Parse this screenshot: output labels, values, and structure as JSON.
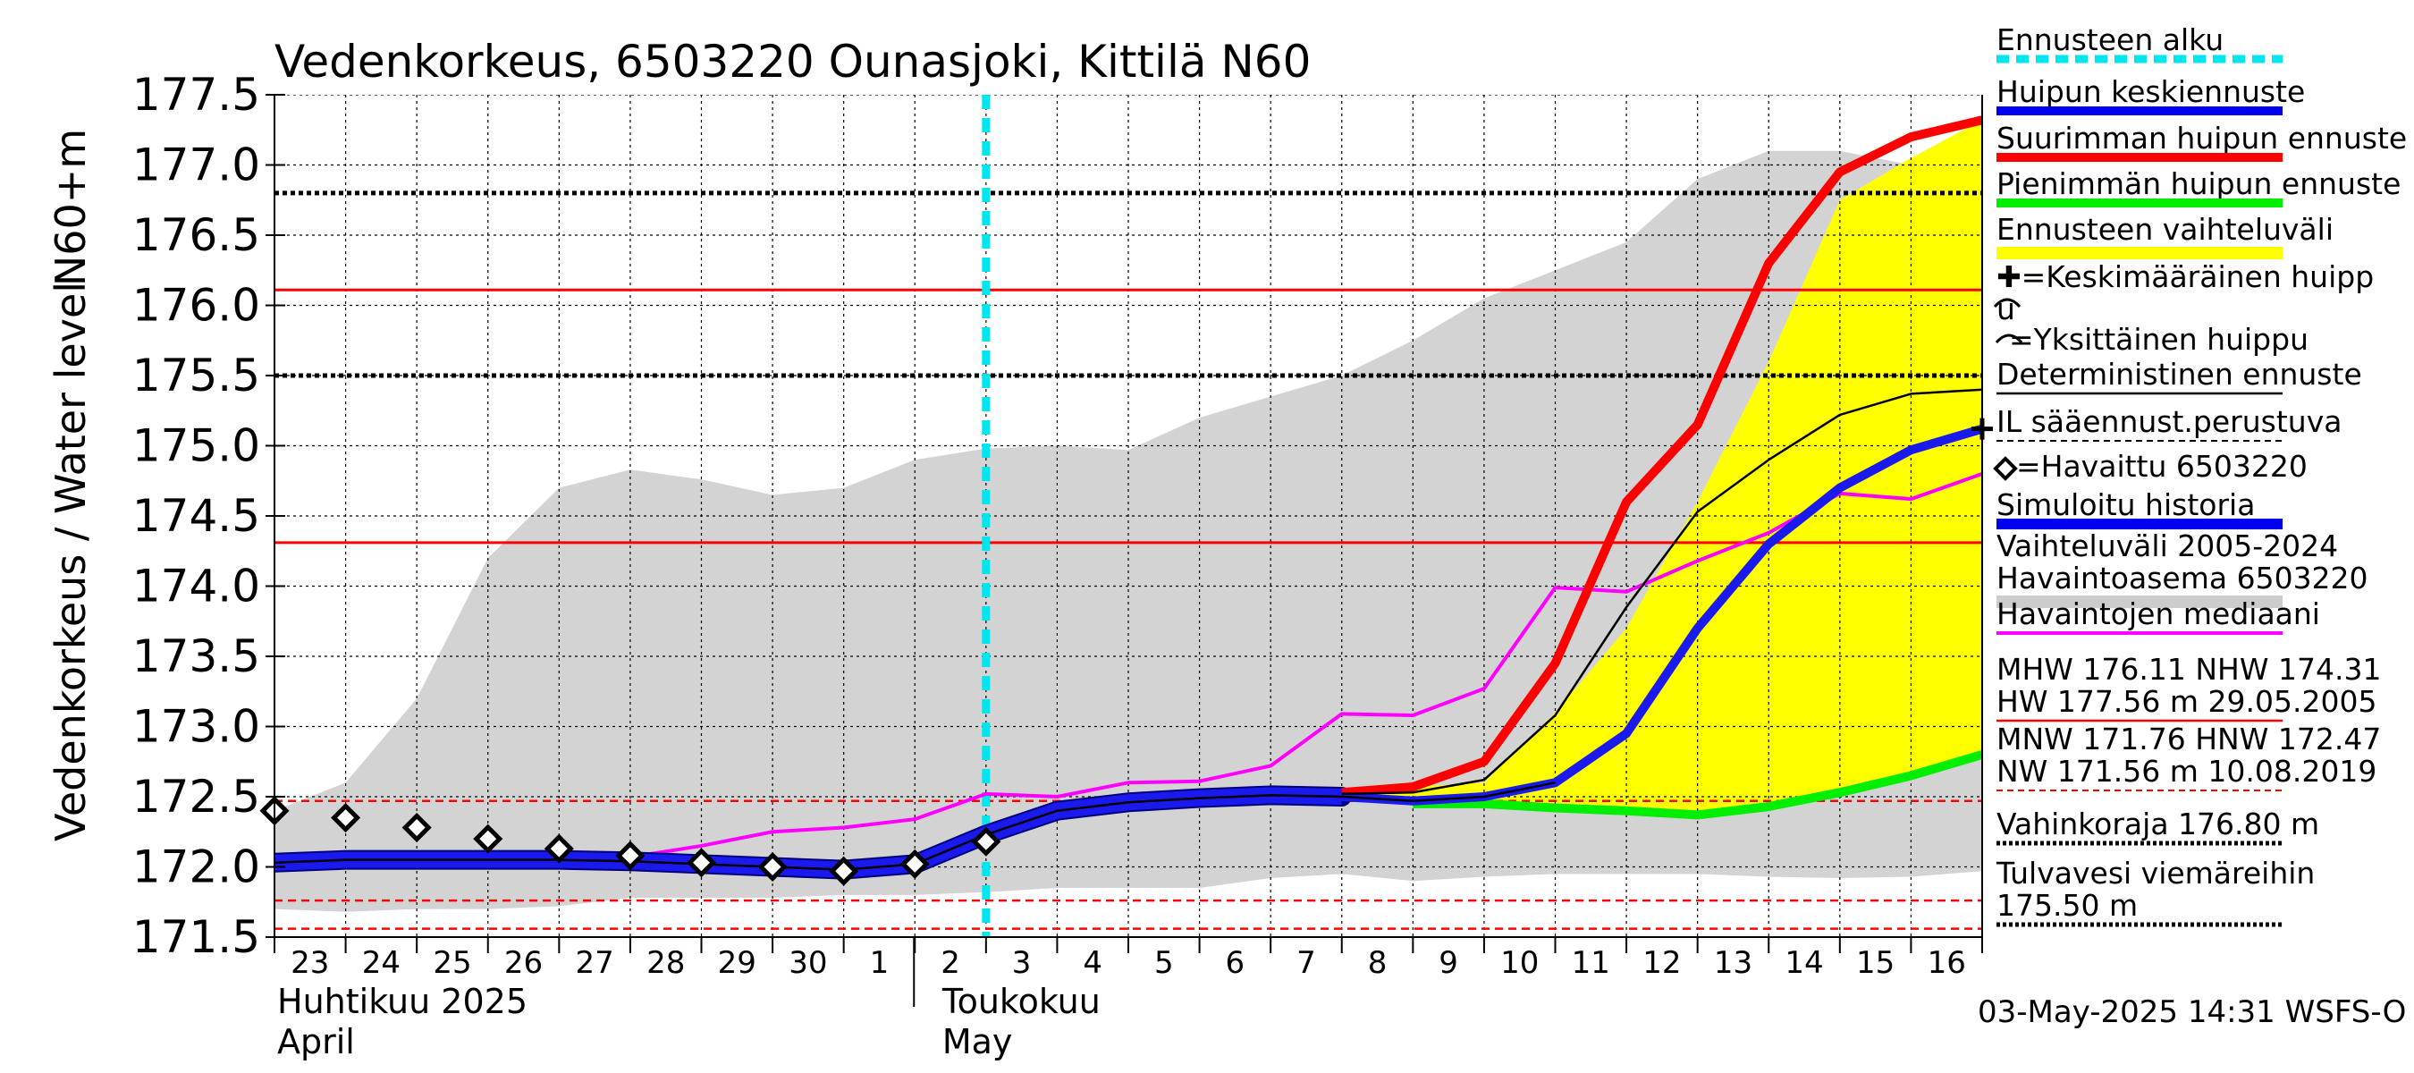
{
  "chart_data": {
    "type": "line",
    "title": "Vedenkorkeus, 6503220 Ounasjoki, Kittilä N60",
    "ylabel_left": "Vedenkorkeus / Water level",
    "ylabel_right": "N60+m",
    "ylim": [
      171.5,
      177.5
    ],
    "yticks": [
      "171.5",
      "172.0",
      "172.5",
      "173.0",
      "173.5",
      "174.0",
      "174.5",
      "175.0",
      "175.5",
      "176.0",
      "176.5",
      "177.0",
      "177.5"
    ],
    "xlim": [
      0,
      24
    ],
    "day_labels": [
      "23",
      "24",
      "25",
      "26",
      "27",
      "28",
      "29",
      "30",
      "1",
      "2",
      "3",
      "4",
      "5",
      "6",
      "7",
      "8",
      "9",
      "10",
      "11",
      "12",
      "13",
      "14",
      "15",
      "16"
    ],
    "month_labels": [
      {
        "fi": "Huhtikuu  2025",
        "en": "April",
        "x": 0
      },
      {
        "fi": "Toukokuu",
        "en": "May",
        "x": 9
      }
    ],
    "forecast_start_x": 10,
    "grid": true,
    "legend_position": "right",
    "legend": [
      {
        "label": "Ennusteen alku",
        "color": "#00e5ee",
        "style": "dotted-thick"
      },
      {
        "label": "Huipun keskiennuste",
        "color": "#0000ee",
        "style": "thick"
      },
      {
        "label": "Suurimman huipun ennuste",
        "color": "#ff0000",
        "style": "thick"
      },
      {
        "label": "Pienimmän huipun ennuste",
        "color": "#00ee00",
        "style": "thick"
      },
      {
        "label": "Ennusteen vaihteluväli",
        "color": "#ffff00",
        "style": "band"
      },
      {
        "label": "✚=Keskimääräinen huipp",
        "label2": "u",
        "color": "#000000",
        "style": "none"
      },
      {
        "label": "=Yksittäinen huippu",
        "color": "#000000",
        "style": "none"
      },
      {
        "label": "Deterministinen ennuste",
        "color": "#000000",
        "style": "thin"
      },
      {
        "label": "IL sääennust.perustuva",
        "color": "#000000",
        "style": "dashed-thin"
      },
      {
        "label": "=Havaittu 6503220",
        "color": "#000000",
        "style": "none"
      },
      {
        "label": "Simuloitu historia",
        "color": "#0000ee",
        "style": "thick-dark"
      },
      {
        "label": "Vaihteluväli 2005-2024",
        "label2": " Havaintoasema 6503220",
        "color": "#cccccc",
        "style": "band"
      },
      {
        "label": "Havaintojen mediaani",
        "color": "#ff00ff",
        "style": "thin-med"
      },
      {
        "label": "MHW 176.11 NHW 174.31",
        "label2": "HW 177.56 m 29.05.2005",
        "color": "#ff0000",
        "style": "thin"
      },
      {
        "label": "MNW 171.76 HNW 172.47",
        "label2": "NW 171.56 m 10.08.2019",
        "color": "#ff0000",
        "style": "dashed-thin"
      },
      {
        "label": "Vahinkoraja 176.80 m",
        "color": "#000000",
        "style": "dotted-med"
      },
      {
        "label": "Tulvavesi viemäreihin",
        "label2": " 175.50 m",
        "color": "#000000",
        "style": "dotted-med"
      }
    ],
    "hlines": [
      {
        "name": "Vahinkoraja",
        "y": 176.8,
        "color": "#000000",
        "style": "dotted"
      },
      {
        "name": "Tulvavesi viemäreihin",
        "y": 175.5,
        "color": "#000000",
        "style": "dotted"
      },
      {
        "name": "MHW",
        "y": 176.11,
        "color": "#ff0000",
        "style": "solid"
      },
      {
        "name": "NHW",
        "y": 174.31,
        "color": "#ff0000",
        "style": "solid"
      },
      {
        "name": "HNW",
        "y": 172.47,
        "color": "#ff0000",
        "style": "dashed"
      },
      {
        "name": "MNW",
        "y": 171.76,
        "color": "#ff0000",
        "style": "dashed"
      },
      {
        "name": "NW",
        "y": 171.56,
        "color": "#ff0000",
        "style": "dashed"
      }
    ],
    "variation_band": {
      "color": "#d3d3d3",
      "x": [
        0,
        1,
        2,
        3,
        4,
        5,
        6,
        7,
        8,
        9,
        10,
        11,
        12,
        13,
        14,
        15,
        16,
        17,
        18,
        19,
        20,
        21,
        22,
        23,
        24
      ],
      "upper": [
        172.4,
        172.6,
        173.2,
        174.2,
        174.7,
        174.83,
        174.76,
        174.65,
        174.7,
        174.9,
        174.98,
        175.0,
        174.97,
        175.2,
        175.35,
        175.5,
        175.75,
        176.05,
        176.25,
        176.45,
        176.9,
        177.1,
        177.1,
        177.0,
        176.8
      ],
      "lower": [
        171.7,
        171.68,
        171.7,
        171.7,
        171.72,
        171.78,
        171.78,
        171.78,
        171.8,
        171.8,
        171.82,
        171.85,
        171.85,
        171.85,
        171.92,
        171.95,
        171.9,
        171.93,
        171.95,
        171.95,
        171.95,
        171.93,
        171.92,
        171.93,
        171.97
      ]
    },
    "forecast_band": {
      "color": "#ffff00",
      "x": [
        15,
        16,
        17,
        18,
        19,
        20,
        21,
        22,
        23,
        24
      ],
      "upper": [
        172.55,
        172.57,
        172.6,
        173.1,
        173.7,
        174.6,
        175.6,
        176.75,
        177.05,
        177.32
      ],
      "lower": [
        172.5,
        172.5,
        172.47,
        172.44,
        172.4,
        172.38,
        172.44,
        172.53,
        172.65,
        172.8
      ]
    },
    "series": [
      {
        "name": "Havaintojen mediaani",
        "color": "#ff00ff",
        "width": 4,
        "x": [
          0,
          1,
          2,
          3,
          4,
          5,
          6,
          7,
          8,
          9,
          10,
          11,
          12,
          13,
          14,
          15,
          16,
          17,
          18,
          19,
          20,
          21,
          22,
          23,
          24
        ],
        "y": [
          172.05,
          172.1,
          172.08,
          172.08,
          172.1,
          172.07,
          172.15,
          172.25,
          172.28,
          172.34,
          172.52,
          172.5,
          172.6,
          172.61,
          172.72,
          173.09,
          173.08,
          173.27,
          173.99,
          173.96,
          174.18,
          174.38,
          174.66,
          174.62,
          174.8
        ]
      },
      {
        "name": "Simuloitu historia",
        "color": "#1a1aee",
        "width": 18,
        "x": [
          0,
          1,
          2,
          3,
          4,
          5,
          6,
          7,
          8,
          9,
          10,
          11,
          12,
          13,
          14,
          15
        ],
        "y": [
          172.03,
          172.05,
          172.05,
          172.05,
          172.05,
          172.04,
          172.02,
          172.0,
          171.98,
          172.02,
          172.23,
          172.4,
          172.46,
          172.49,
          172.51,
          172.5
        ]
      },
      {
        "name": "Pienimmän huipun ennuste",
        "color": "#00ee00",
        "width": 10,
        "x": [
          16,
          17,
          18,
          19,
          20,
          21,
          22,
          23,
          24
        ],
        "y": [
          172.45,
          172.45,
          172.42,
          172.4,
          172.37,
          172.43,
          172.53,
          172.65,
          172.8
        ]
      },
      {
        "name": "Suurimman huipun ennuste",
        "color": "#ff0000",
        "width": 10,
        "x": [
          15,
          16,
          17,
          18,
          19,
          20,
          21,
          22,
          23,
          24
        ],
        "y": [
          172.53,
          172.57,
          172.75,
          173.45,
          174.6,
          175.15,
          176.3,
          176.95,
          177.2,
          177.32
        ]
      },
      {
        "name": "Huipun keskiennuste",
        "color": "#1a1aee",
        "width": 10,
        "x": [
          15,
          16,
          17,
          18,
          19,
          20,
          21,
          22,
          23,
          24
        ],
        "y": [
          172.5,
          172.47,
          172.5,
          172.6,
          172.95,
          173.7,
          174.3,
          174.7,
          174.97,
          175.12
        ]
      },
      {
        "name": "Deterministinen ennuste",
        "color": "#000000",
        "width": 2.5,
        "x": [
          15,
          16,
          17,
          18,
          19,
          20,
          21,
          22,
          23,
          24
        ],
        "y": [
          172.52,
          172.53,
          172.62,
          173.08,
          173.85,
          174.53,
          174.9,
          175.22,
          175.37,
          175.4
        ]
      },
      {
        "name": "Historia core",
        "color": "#000000",
        "width": 2.5,
        "x": [
          0,
          1,
          2,
          3,
          4,
          5,
          6,
          7,
          8,
          9,
          10,
          11,
          12,
          13,
          14,
          15,
          16,
          17,
          18
        ],
        "y": [
          172.03,
          172.05,
          172.05,
          172.05,
          172.05,
          172.04,
          172.02,
          172.0,
          171.98,
          172.02,
          172.23,
          172.4,
          172.46,
          172.49,
          172.51,
          172.5,
          172.47,
          172.5,
          172.6
        ]
      }
    ],
    "observed": {
      "name": "Havaittu 6503220",
      "x": [
        0,
        1,
        2,
        3,
        4,
        5,
        6,
        7,
        8,
        9,
        10
      ],
      "y": [
        172.4,
        172.35,
        172.28,
        172.2,
        172.13,
        172.08,
        172.03,
        172.0,
        171.97,
        172.02,
        172.18
      ]
    },
    "mean_peak_marker": {
      "x": 24,
      "y": 175.12
    },
    "timestamp": "03-May-2025 14:31 WSFS-O"
  }
}
